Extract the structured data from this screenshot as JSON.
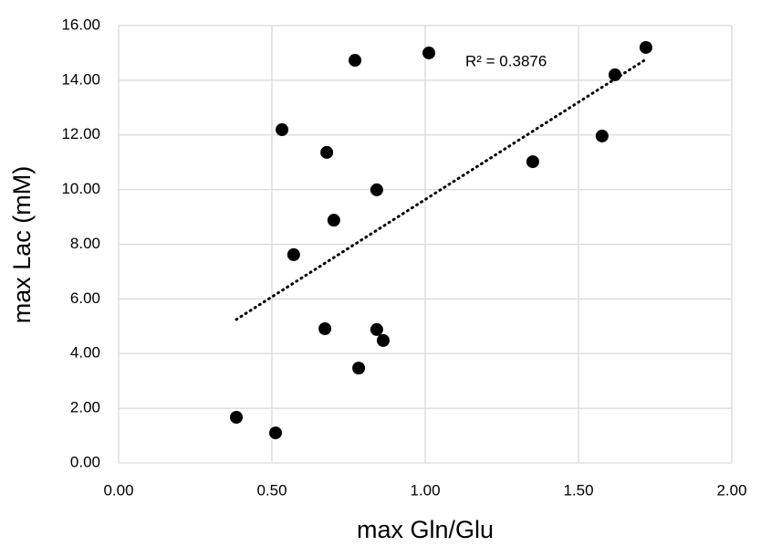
{
  "chart_data": {
    "type": "scatter",
    "x_label": "max Gln/Glu",
    "y_label": "max Lac (mM)",
    "annotation": "R² = 0.3876",
    "x": [
      0.384,
      0.512,
      0.533,
      0.571,
      0.673,
      0.702,
      0.679,
      0.771,
      0.783,
      0.842,
      0.863,
      0.842,
      1.012,
      1.351,
      1.577,
      1.619,
      1.72
    ],
    "y": [
      1.67,
      1.1,
      12.19,
      7.62,
      4.91,
      8.88,
      11.36,
      14.73,
      3.47,
      4.88,
      4.48,
      9.99,
      15.0,
      11.02,
      11.96,
      14.2,
      15.2
    ],
    "color": "#000000",
    "trendline": true,
    "grid": true,
    "xlim": [
      0,
      2
    ],
    "ylim": [
      0,
      16
    ],
    "xticks": [
      {
        "value": 0,
        "label": "0.00"
      },
      {
        "value": 0.5,
        "label": "0.50"
      },
      {
        "value": 1,
        "label": "1.00"
      },
      {
        "value": 1.5,
        "label": "1.50"
      },
      {
        "value": 2,
        "label": "2.00"
      }
    ],
    "yticks": [
      {
        "value": 0,
        "label": "0.00"
      },
      {
        "value": 2,
        "label": "2.00"
      },
      {
        "value": 4,
        "label": "4.00"
      },
      {
        "value": 6,
        "label": "6.00"
      },
      {
        "value": 8,
        "label": "8.00"
      },
      {
        "value": 10,
        "label": "10.00"
      },
      {
        "value": 12,
        "label": "12.00"
      },
      {
        "value": 14,
        "label": "14.00"
      },
      {
        "value": 16,
        "label": "16.00"
      }
    ]
  }
}
